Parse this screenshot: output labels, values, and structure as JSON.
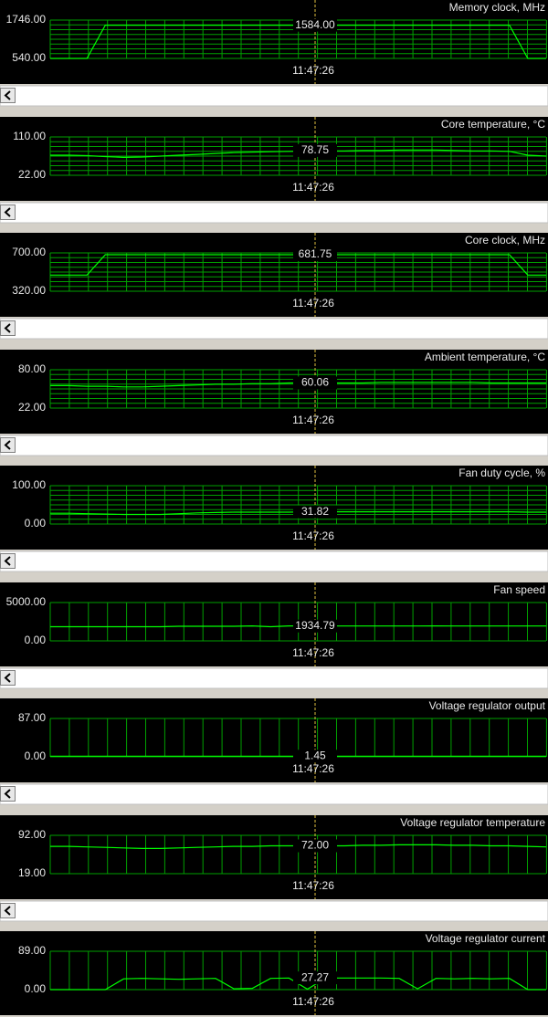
{
  "panels": [
    {
      "title": "Memory clock, MHz",
      "ymax": "1746.00",
      "ymin": "540.00",
      "current": "1584.00",
      "time": "11:47:26",
      "horizontal_grid": true,
      "values": [
        540,
        540,
        540,
        1584,
        1584,
        1584,
        1584,
        1584,
        1584,
        1584,
        1584,
        1584,
        1584,
        1584,
        1584,
        1584,
        1584,
        1584,
        1584,
        1584,
        1584,
        1584,
        1584,
        1584,
        1584,
        1584,
        540,
        540
      ]
    },
    {
      "title": "Core temperature, °C",
      "ymax": "110.00",
      "ymin": "22.00",
      "current": "78.75",
      "time": "11:47:26",
      "horizontal_grid": true,
      "values": [
        68,
        68,
        67,
        65,
        63,
        64,
        66,
        68,
        70,
        72,
        74,
        75,
        76,
        77,
        78,
        78,
        78,
        79,
        79,
        80,
        80,
        80,
        79,
        78,
        78,
        77,
        68,
        66
      ]
    },
    {
      "title": "Core clock, MHz",
      "ymax": "700.00",
      "ymin": "320.00",
      "current": "681.75",
      "time": "11:47:26",
      "horizontal_grid": true,
      "values": [
        480,
        480,
        480,
        681.75,
        681.75,
        681.75,
        681.75,
        681.75,
        681.75,
        681.75,
        681.75,
        681.75,
        681.75,
        681.75,
        681.75,
        681.75,
        681.75,
        681.75,
        681.75,
        681.75,
        681.75,
        681.75,
        681.75,
        681.75,
        681.75,
        681.75,
        480,
        480
      ]
    },
    {
      "title": "Ambient temperature, °C",
      "ymax": "80.00",
      "ymin": "22.00",
      "current": "60.06",
      "time": "11:47:26",
      "horizontal_grid": true,
      "values": [
        56,
        56,
        55,
        55,
        54,
        54,
        55,
        56,
        57,
        58,
        58,
        59,
        59,
        60,
        60,
        60,
        60,
        60,
        61,
        61,
        61,
        61,
        61,
        61,
        60,
        60,
        60,
        60
      ]
    },
    {
      "title": "Fan duty cycle, %",
      "ymax": "100.00",
      "ymin": "0.00",
      "current": "31.82",
      "time": "11:47:26",
      "horizontal_grid": true,
      "values": [
        28,
        28,
        27,
        26,
        25,
        25,
        25,
        27,
        29,
        30,
        31,
        31,
        31,
        31,
        32,
        32,
        32,
        32,
        32,
        32,
        32,
        32,
        32,
        32,
        32,
        32,
        31,
        31
      ]
    },
    {
      "title": "Fan speed",
      "ymax": "5000.00",
      "ymin": "0.00",
      "current": "1934.79",
      "time": "11:47:26",
      "horizontal_grid": false,
      "values": [
        1850,
        1850,
        1850,
        1850,
        1850,
        1850,
        1850,
        1900,
        1900,
        1900,
        1900,
        1950,
        1850,
        1950,
        1935,
        1935,
        1935,
        1935,
        1935,
        1935,
        1935,
        1950,
        1935,
        1935,
        1935,
        1935,
        1935,
        1935
      ]
    },
    {
      "title": "Voltage regulator output",
      "ymax": "87.00",
      "ymin": "0.00",
      "current": "1.45",
      "time": "11:47:26",
      "horizontal_grid": false,
      "values": [
        1.45,
        1.45,
        1.45,
        1.45,
        1.45,
        1.45,
        1.45,
        1.45,
        1.45,
        1.45,
        1.45,
        1.45,
        1.45,
        1.45,
        1.45,
        1.45,
        1.45,
        1.45,
        1.45,
        1.45,
        1.45,
        1.45,
        1.45,
        1.45,
        1.45,
        1.45,
        1.45,
        1.45
      ]
    },
    {
      "title": "Voltage regulator temperature",
      "ymax": "92.00",
      "ymin": "19.00",
      "current": "72.00",
      "time": "11:47:26",
      "horizontal_grid": false,
      "values": [
        71,
        71,
        70,
        69,
        68,
        67,
        67,
        68,
        69,
        70,
        71,
        71,
        72,
        72,
        72,
        72,
        72,
        73,
        73,
        74,
        74,
        74,
        73,
        73,
        72,
        72,
        71,
        70
      ]
    },
    {
      "title": "Voltage regulator current",
      "ymax": "89.00",
      "ymin": "0.00",
      "current": "27.27",
      "time": "11:47:26",
      "horizontal_grid": false,
      "values": [
        0,
        0,
        0,
        0,
        25,
        26,
        25,
        24,
        25,
        26,
        2,
        3,
        26,
        27,
        1,
        27,
        27,
        27,
        27,
        26,
        2,
        26,
        25,
        26,
        25,
        26,
        0,
        0
      ]
    }
  ]
}
